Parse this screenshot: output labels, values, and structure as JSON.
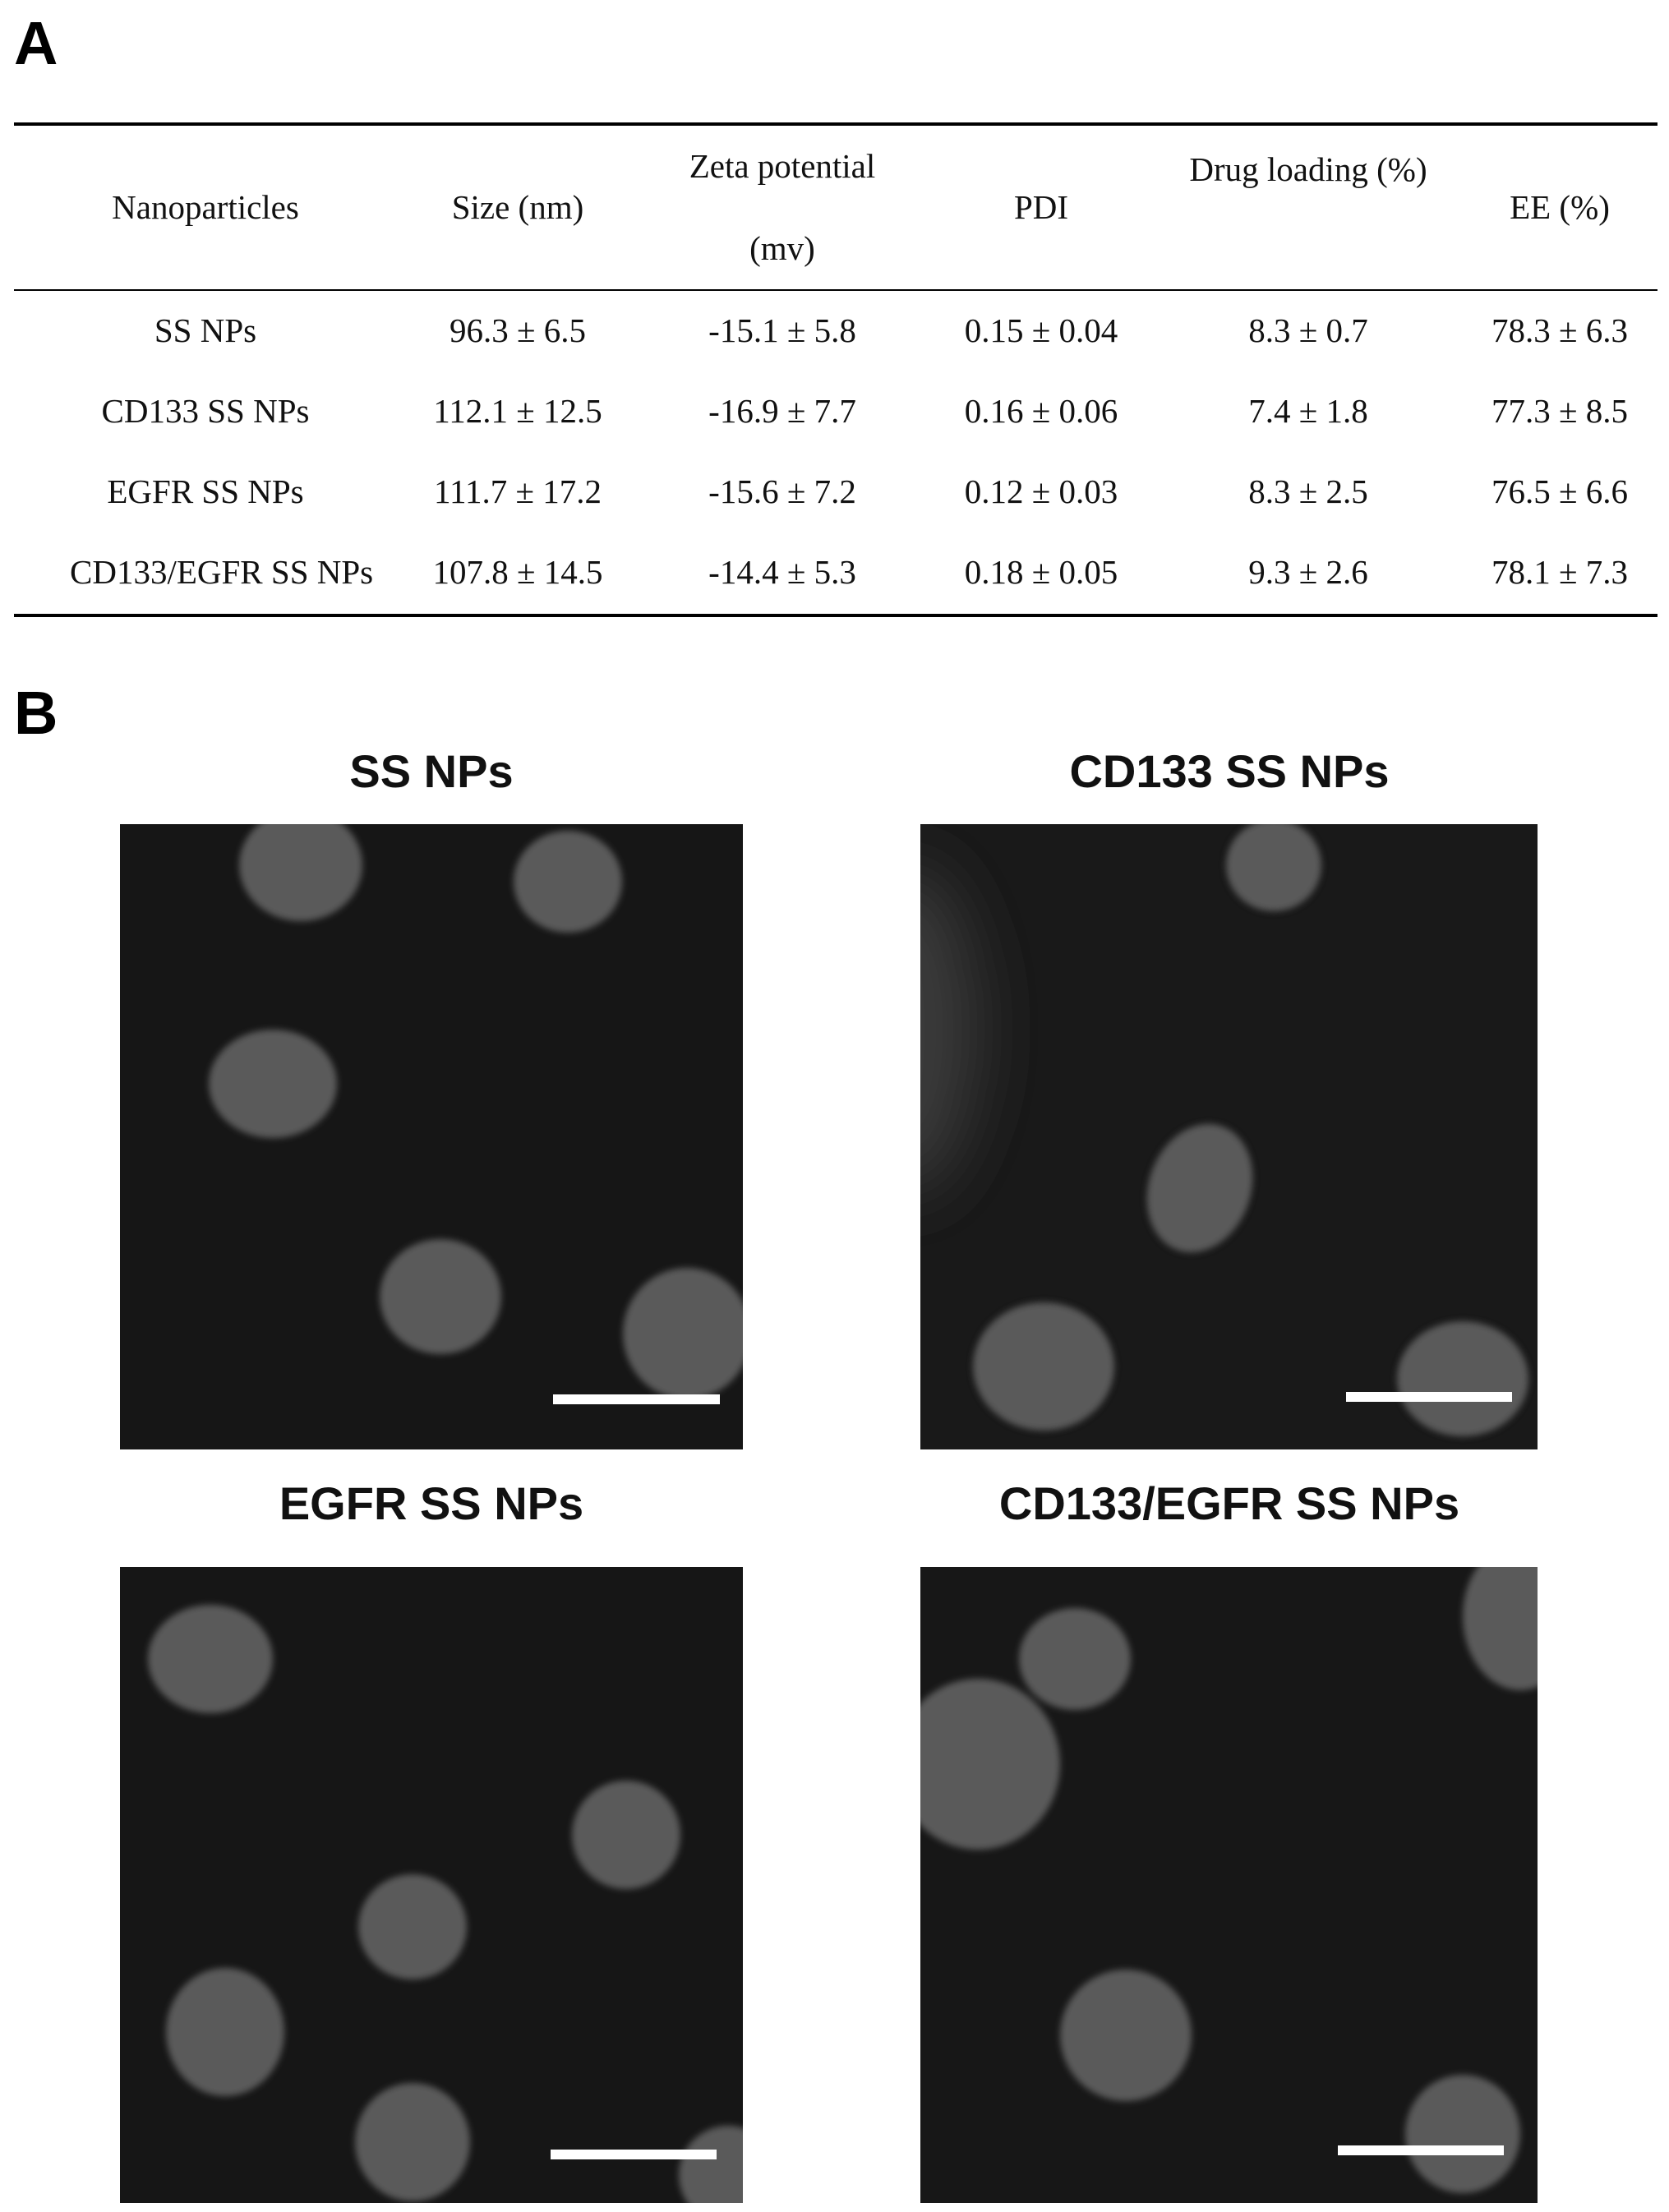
{
  "panel_a": {
    "label": "A",
    "table": {
      "header": [
        "Nanoparticles",
        "Size (nm)",
        "Zeta potential (mv)",
        "PDI",
        "Drug loading (%)",
        "EE (%)"
      ],
      "rows": [
        [
          "SS NPs",
          "96.3 ± 6.5",
          "-15.1 ± 5.8",
          "0.15 ± 0.04",
          "8.3 ± 0.7",
          "78.3 ± 6.3"
        ],
        [
          "CD133 SS NPs",
          "112.1 ± 12.5",
          "-16.9 ± 7.7",
          "0.16 ± 0.06",
          "7.4 ± 1.8",
          "77.3 ± 8.5"
        ],
        [
          "EGFR SS NPs",
          "111.7 ± 17.2",
          "-15.6 ± 7.2",
          "0.12 ± 0.03",
          "8.3 ± 2.5",
          "76.5 ± 6.6"
        ],
        [
          "CD133/EGFR SS NPs",
          "107.8 ± 14.5",
          "-14.4 ± 5.3",
          "0.18 ± 0.05",
          "9.3 ± 2.6",
          "78.1 ± 7.3"
        ]
      ]
    }
  },
  "panel_b": {
    "label": "B",
    "images": [
      {
        "title": "SS NPs"
      },
      {
        "title": "CD133 SS NPs"
      },
      {
        "title": "EGFR SS NPs"
      },
      {
        "title": "CD133/EGFR SS NPs"
      }
    ]
  }
}
